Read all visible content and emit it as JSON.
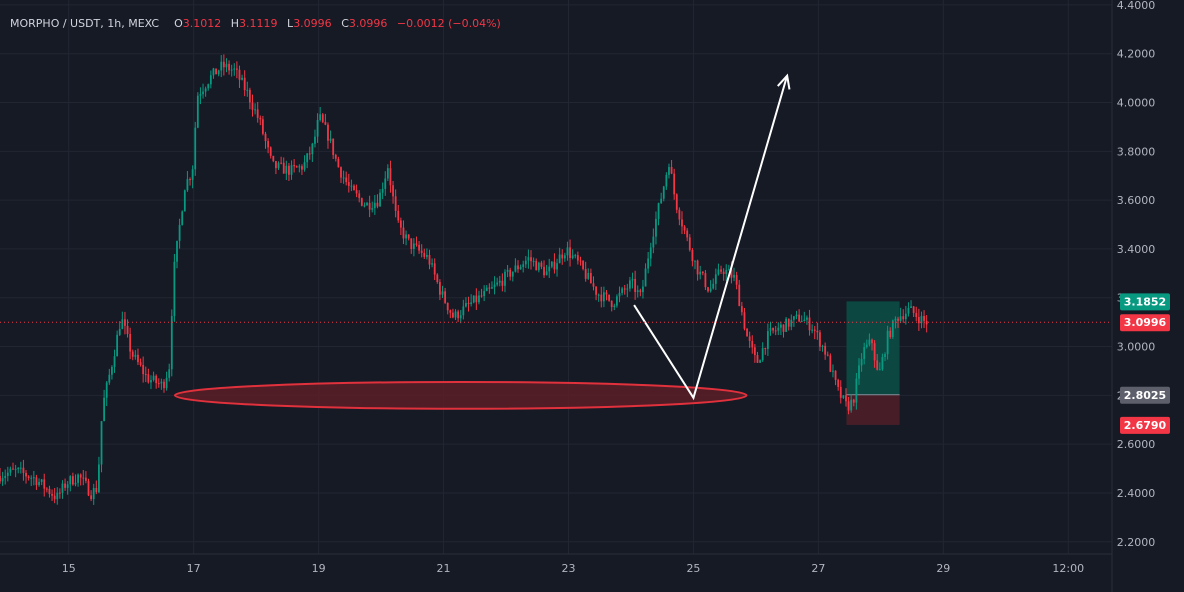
{
  "legend": {
    "symbol": "MORPHO / USDT, 1h, MEXC",
    "o_label": "O",
    "o_value": "3.1012",
    "h_label": "H",
    "h_value": "3.1119",
    "l_label": "L",
    "l_value": "3.0996",
    "c_label": "C",
    "c_value": "3.0996",
    "change": "−0.0012 (−0.04%)"
  },
  "colors": {
    "background": "#161a25",
    "grid": "#222632",
    "up": "#089981",
    "down": "#f23645",
    "text": "#b2b5be",
    "annotation": "#ffffff",
    "ellipse_stroke": "#e0313c",
    "ellipse_fill": "#5a1f27",
    "target_zone": "#0b4c45",
    "stop_zone": "#4a1f28"
  },
  "chart_data": {
    "type": "candlestick",
    "symbol": "MORPHO / USDT",
    "interval": "1h",
    "exchange": "MEXC",
    "y_axis": {
      "range": [
        2.15,
        4.42
      ],
      "ticks": [
        "4.4000",
        "4.2000",
        "4.0000",
        "3.8000",
        "3.6000",
        "3.4000",
        "3.2000",
        "3.0000",
        "2.8000",
        "2.6000",
        "2.4000",
        "2.2000"
      ]
    },
    "x_axis": {
      "range_days": [
        13.9,
        31.7
      ],
      "ticks": [
        {
          "t": 15,
          "label": "15"
        },
        {
          "t": 17,
          "label": "17"
        },
        {
          "t": 19,
          "label": "19"
        },
        {
          "t": 21,
          "label": "21"
        },
        {
          "t": 23,
          "label": "23"
        },
        {
          "t": 25,
          "label": "25"
        },
        {
          "t": 27,
          "label": "27"
        },
        {
          "t": 29,
          "label": "29"
        },
        {
          "t": 31,
          "label": "12:00"
        }
      ]
    },
    "price_path": [
      [
        13.9,
        2.47
      ],
      [
        14.2,
        2.49
      ],
      [
        14.5,
        2.46
      ],
      [
        14.85,
        2.38
      ],
      [
        15.0,
        2.44
      ],
      [
        15.2,
        2.47
      ],
      [
        15.4,
        2.4
      ],
      [
        15.5,
        2.42
      ],
      [
        15.58,
        2.75
      ],
      [
        15.75,
        2.95
      ],
      [
        15.88,
        3.12
      ],
      [
        16.05,
        2.97
      ],
      [
        16.3,
        2.87
      ],
      [
        16.55,
        2.84
      ],
      [
        16.65,
        2.92
      ],
      [
        16.72,
        3.3
      ],
      [
        16.9,
        3.66
      ],
      [
        17.02,
        3.72
      ],
      [
        17.1,
        4.03
      ],
      [
        17.3,
        4.1
      ],
      [
        17.5,
        4.15
      ],
      [
        17.7,
        4.13
      ],
      [
        17.9,
        4.04
      ],
      [
        18.1,
        3.92
      ],
      [
        18.3,
        3.74
      ],
      [
        18.6,
        3.72
      ],
      [
        18.8,
        3.74
      ],
      [
        18.95,
        3.82
      ],
      [
        19.05,
        3.94
      ],
      [
        19.2,
        3.86
      ],
      [
        19.35,
        3.74
      ],
      [
        19.55,
        3.64
      ],
      [
        19.8,
        3.58
      ],
      [
        20.0,
        3.6
      ],
      [
        20.15,
        3.74
      ],
      [
        20.3,
        3.5
      ],
      [
        20.5,
        3.42
      ],
      [
        20.8,
        3.36
      ],
      [
        21.0,
        3.22
      ],
      [
        21.2,
        3.12
      ],
      [
        21.5,
        3.18
      ],
      [
        21.8,
        3.23
      ],
      [
        22.1,
        3.3
      ],
      [
        22.4,
        3.36
      ],
      [
        22.7,
        3.3
      ],
      [
        23.0,
        3.4
      ],
      [
        23.2,
        3.34
      ],
      [
        23.5,
        3.22
      ],
      [
        23.75,
        3.18
      ],
      [
        24.05,
        3.26
      ],
      [
        24.2,
        3.2
      ],
      [
        24.35,
        3.42
      ],
      [
        24.55,
        3.64
      ],
      [
        24.65,
        3.76
      ],
      [
        24.75,
        3.6
      ],
      [
        24.95,
        3.43
      ],
      [
        25.1,
        3.32
      ],
      [
        25.3,
        3.23
      ],
      [
        25.5,
        3.32
      ],
      [
        25.7,
        3.28
      ],
      [
        25.9,
        3.04
      ],
      [
        26.05,
        2.93
      ],
      [
        26.25,
        3.05
      ],
      [
        26.45,
        3.08
      ],
      [
        26.75,
        3.12
      ],
      [
        26.95,
        3.08
      ],
      [
        27.15,
        2.98
      ],
      [
        27.35,
        2.82
      ],
      [
        27.5,
        2.75
      ],
      [
        27.6,
        2.78
      ],
      [
        27.75,
        2.98
      ],
      [
        27.9,
        3.02
      ],
      [
        28.0,
        2.87
      ],
      [
        28.15,
        3.04
      ],
      [
        28.3,
        3.12
      ],
      [
        28.5,
        3.15
      ],
      [
        28.65,
        3.12
      ],
      [
        28.75,
        3.1
      ]
    ],
    "last_price": 3.0996,
    "price_labels": [
      {
        "value": 3.1852,
        "text": "3.1852",
        "color": "#089981"
      },
      {
        "value": 3.0996,
        "text": "3.0996",
        "color": "#f23645"
      },
      {
        "value": 2.8025,
        "text": "2.8025",
        "color": "#5d606b"
      },
      {
        "value": 2.679,
        "text": "2.6790",
        "color": "#f23645"
      }
    ],
    "annotations": {
      "support_ellipse": {
        "t_from": 16.7,
        "t_to": 25.85,
        "price_from": 2.745,
        "price_to": 2.855
      },
      "projection_path": [
        [
          24.05,
          3.17
        ],
        [
          25.0,
          2.79
        ],
        [
          26.5,
          4.11
        ]
      ],
      "position": {
        "t_from": 27.45,
        "t_to": 28.3,
        "entry": 2.8025,
        "target": 3.1852,
        "stop": 2.679
      }
    }
  }
}
